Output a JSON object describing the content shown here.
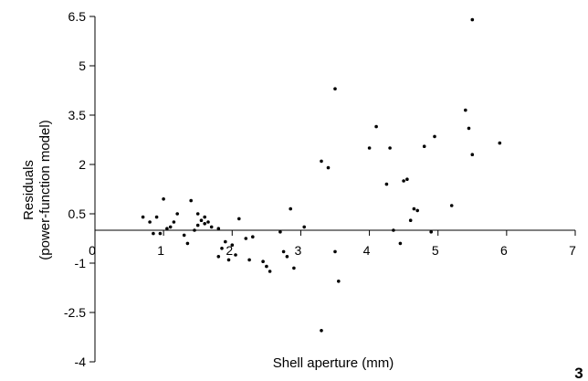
{
  "chart_data": {
    "type": "scatter",
    "title": "",
    "xlabel": "Shell aperture (mm)",
    "ylabel": [
      "Residuals",
      "(power-function model)"
    ],
    "xlim": [
      0,
      7
    ],
    "ylim": [
      -4,
      6.5
    ],
    "xticks": [
      0,
      1,
      2,
      3,
      4,
      5,
      6,
      7
    ],
    "xtick_labels": [
      "0",
      "1",
      "2",
      "3",
      "4",
      "5",
      "6",
      "7"
    ],
    "yticks": [
      6.5,
      5,
      3.5,
      2,
      0.5,
      -1,
      -2.5,
      -4
    ],
    "ytick_labels": [
      "6.5",
      "5",
      "3.5",
      "2",
      "0.5",
      "-1",
      "-2.5",
      "-4"
    ],
    "grid": false,
    "legend": "none",
    "marker_color": "#000000",
    "points": [
      [
        0.7,
        0.4
      ],
      [
        0.8,
        0.25
      ],
      [
        0.85,
        -0.1
      ],
      [
        0.9,
        0.4
      ],
      [
        0.95,
        -0.1
      ],
      [
        1.0,
        0.95
      ],
      [
        1.05,
        0.05
      ],
      [
        1.1,
        0.1
      ],
      [
        1.15,
        0.25
      ],
      [
        1.2,
        0.5
      ],
      [
        1.3,
        -0.15
      ],
      [
        1.35,
        -0.4
      ],
      [
        1.4,
        0.9
      ],
      [
        1.45,
        0.0
      ],
      [
        1.5,
        0.15
      ],
      [
        1.55,
        0.3
      ],
      [
        1.6,
        0.4
      ],
      [
        1.65,
        0.25
      ],
      [
        1.7,
        0.1
      ],
      [
        1.6,
        0.2
      ],
      [
        1.5,
        0.5
      ],
      [
        1.8,
        -0.8
      ],
      [
        1.8,
        0.05
      ],
      [
        1.85,
        -0.55
      ],
      [
        1.9,
        -0.35
      ],
      [
        1.95,
        -0.9
      ],
      [
        2.0,
        -0.45
      ],
      [
        2.05,
        -0.75
      ],
      [
        2.1,
        0.35
      ],
      [
        2.2,
        -0.25
      ],
      [
        2.25,
        -0.9
      ],
      [
        2.3,
        -0.2
      ],
      [
        2.45,
        -0.95
      ],
      [
        2.5,
        -1.1
      ],
      [
        2.55,
        -1.25
      ],
      [
        2.7,
        -0.05
      ],
      [
        2.75,
        -0.65
      ],
      [
        2.8,
        -0.8
      ],
      [
        2.85,
        0.65
      ],
      [
        2.9,
        -1.15
      ],
      [
        3.05,
        0.1
      ],
      [
        3.3,
        2.1
      ],
      [
        3.4,
        1.9
      ],
      [
        3.5,
        4.3
      ],
      [
        3.5,
        -0.65
      ],
      [
        3.55,
        -1.55
      ],
      [
        3.3,
        -3.05
      ],
      [
        4.0,
        2.5
      ],
      [
        4.1,
        3.15
      ],
      [
        4.25,
        1.4
      ],
      [
        4.3,
        2.5
      ],
      [
        4.35,
        0.0
      ],
      [
        4.45,
        -0.4
      ],
      [
        4.5,
        1.5
      ],
      [
        4.55,
        1.55
      ],
      [
        4.6,
        0.3
      ],
      [
        4.65,
        0.65
      ],
      [
        4.7,
        0.6
      ],
      [
        4.8,
        2.55
      ],
      [
        4.9,
        -0.05
      ],
      [
        4.95,
        2.85
      ],
      [
        5.2,
        0.75
      ],
      [
        5.4,
        3.65
      ],
      [
        5.45,
        3.1
      ],
      [
        5.5,
        2.3
      ],
      [
        5.5,
        6.4
      ],
      [
        5.9,
        2.65
      ]
    ],
    "annotations": [
      {
        "text": "3"
      }
    ]
  }
}
